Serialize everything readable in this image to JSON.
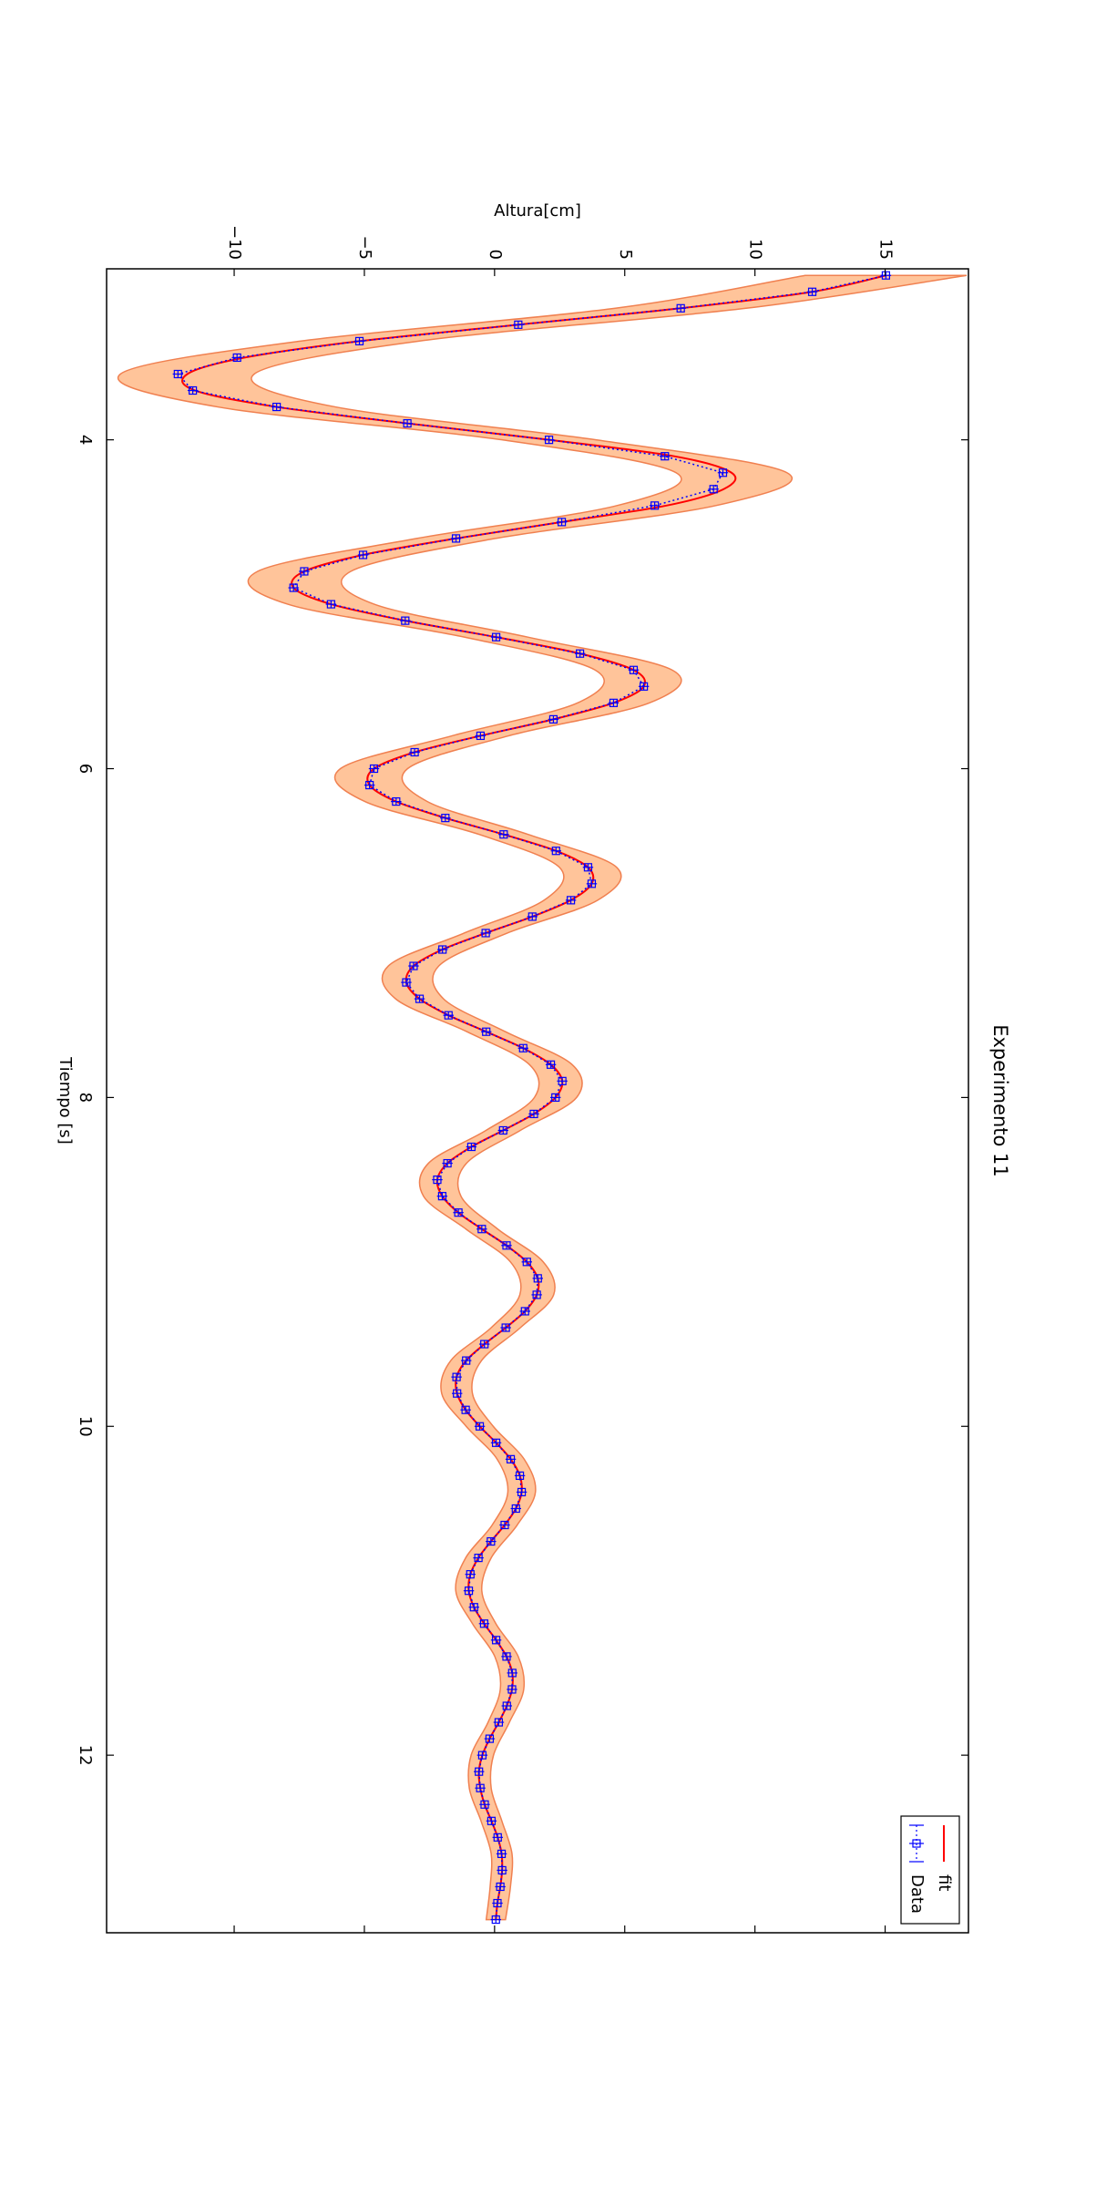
{
  "chart_data": {
    "type": "line",
    "title": "Experimento 11",
    "xlabel": "Tiempo [s]",
    "ylabel": "Altura[cm]",
    "xlim": [
      2.96,
      13.08
    ],
    "ylim": [
      -14.9,
      18.2
    ],
    "xticks": [
      4,
      6,
      8,
      10,
      12
    ],
    "yticks": [
      {
        "value": -10,
        "label": "−10"
      },
      {
        "value": -5,
        "label": "−5"
      },
      0,
      5,
      10,
      15
    ],
    "legend": "upper right",
    "x": [
      3.0,
      3.1,
      3.2,
      3.3,
      3.4,
      3.5,
      3.6,
      3.7,
      3.8,
      3.9,
      4.0,
      4.1,
      4.2,
      4.3,
      4.4,
      4.5,
      4.6,
      4.7,
      4.8,
      4.9,
      5.0,
      5.1,
      5.2,
      5.3,
      5.4,
      5.5,
      5.6,
      5.7,
      5.8,
      5.9,
      6.0,
      6.1,
      6.2,
      6.3,
      6.4,
      6.5,
      6.6,
      6.7,
      6.8,
      6.9,
      7.0,
      7.1,
      7.2,
      7.3,
      7.4,
      7.5,
      7.6,
      7.7,
      7.8,
      7.9,
      8.0,
      8.1,
      8.2,
      8.3,
      8.4,
      8.5,
      8.6,
      8.7,
      8.8,
      8.9,
      9.0,
      9.1,
      9.2,
      9.3,
      9.4,
      9.5,
      9.6,
      9.7,
      9.8,
      9.9,
      10.0,
      10.1,
      10.2,
      10.3,
      10.4,
      10.5,
      10.6,
      10.7,
      10.8,
      10.9,
      11.0,
      11.1,
      11.2,
      11.3,
      11.4,
      11.5,
      11.6,
      11.7,
      11.8,
      11.9,
      12.0,
      12.1,
      12.2,
      12.3,
      12.4,
      12.5,
      12.6,
      12.7,
      12.8,
      12.9,
      13.0
    ],
    "series": [
      {
        "name": "fit",
        "color": "#ff0000",
        "linestyle": "solid",
        "values": [
          15.03,
          12.2,
          7.15,
          0.91,
          -5.19,
          -9.6,
          -11.8,
          -11.5,
          -8.37,
          -3.35,
          2.09,
          6.9,
          9.1,
          8.8,
          6.6,
          2.58,
          -1.48,
          -5.05,
          -7.31,
          -7.72,
          -6.28,
          -3.43,
          0.06,
          3.28,
          5.34,
          5.73,
          4.57,
          2.26,
          -0.54,
          -3.07,
          -4.63,
          -4.8,
          -3.78,
          -1.89,
          0.35,
          2.36,
          3.59,
          3.73,
          2.93,
          1.45,
          -0.34,
          -2.0,
          -3.11,
          -3.39,
          -2.88,
          -1.77,
          -0.32,
          1.1,
          2.16,
          2.6,
          2.34,
          1.51,
          0.33,
          -0.89,
          -1.81,
          -2.2,
          -2.01,
          -1.39,
          -0.49,
          0.46,
          1.24,
          1.66,
          1.62,
          1.17,
          0.43,
          -0.39,
          -1.09,
          -1.46,
          -1.44,
          -1.11,
          -0.57,
          0.06,
          0.62,
          0.97,
          1.04,
          0.82,
          0.39,
          -0.14,
          -0.62,
          -0.93,
          -0.99,
          -0.79,
          -0.4,
          0.06,
          0.46,
          0.68,
          0.67,
          0.47,
          0.16,
          -0.19,
          -0.47,
          -0.6,
          -0.55,
          -0.38,
          -0.12,
          0.12,
          0.27,
          0.29,
          0.22,
          0.11,
          0.05
        ]
      },
      {
        "name": "Data",
        "color": "#0000ff",
        "linestyle": "dotted",
        "yerr": 0.2,
        "xerr": 0.02,
        "values": [
          15.03,
          12.2,
          7.15,
          0.91,
          -5.19,
          -9.89,
          -12.16,
          -11.59,
          -8.37,
          -3.35,
          2.09,
          6.54,
          8.77,
          8.41,
          6.15,
          2.58,
          -1.48,
          -5.05,
          -7.31,
          -7.72,
          -6.28,
          -3.43,
          0.06,
          3.28,
          5.34,
          5.73,
          4.57,
          2.26,
          -0.54,
          -3.07,
          -4.63,
          -4.8,
          -3.78,
          -1.89,
          0.35,
          2.36,
          3.59,
          3.73,
          2.93,
          1.45,
          -0.34,
          -2.0,
          -3.11,
          -3.39,
          -2.88,
          -1.77,
          -0.32,
          1.1,
          2.16,
          2.6,
          2.34,
          1.51,
          0.33,
          -0.89,
          -1.81,
          -2.2,
          -2.01,
          -1.39,
          -0.49,
          0.46,
          1.24,
          1.66,
          1.62,
          1.17,
          0.43,
          -0.39,
          -1.09,
          -1.46,
          -1.44,
          -1.11,
          -0.57,
          0.06,
          0.62,
          0.97,
          1.04,
          0.82,
          0.39,
          -0.14,
          -0.62,
          -0.93,
          -0.99,
          -0.79,
          -0.4,
          0.06,
          0.46,
          0.68,
          0.67,
          0.47,
          0.16,
          -0.19,
          -0.47,
          -0.6,
          -0.55,
          -0.38,
          -0.12,
          0.12,
          0.27,
          0.29,
          0.22,
          0.11,
          0.05
        ]
      }
    ],
    "band": {
      "fill": "#ffc49a",
      "edgecolor": "#f08050",
      "x": [
        3.0,
        3.2,
        3.4,
        3.6,
        3.8,
        4.0,
        4.2,
        4.4,
        4.6,
        4.8,
        5.0,
        5.2,
        5.4,
        5.6,
        5.8,
        6.0,
        6.2,
        6.4,
        6.6,
        6.8,
        7.0,
        7.2,
        7.4,
        7.6,
        7.8,
        8.0,
        8.2,
        8.4,
        8.6,
        8.8,
        9.0,
        9.2,
        9.4,
        9.6,
        9.8,
        10.0,
        10.2,
        10.4,
        10.6,
        10.8,
        11.0,
        11.2,
        11.4,
        11.6,
        11.8,
        12.0,
        12.2,
        12.4,
        12.6,
        12.8,
        13.0
      ],
      "lower": [
        11.93,
        4.64,
        -7.47,
        -14.37,
        -10.63,
        0.29,
        6.97,
        4.7,
        -2.99,
        -9.1,
        -7.94,
        -1.16,
        3.86,
        3.19,
        -1.63,
        -5.92,
        -4.98,
        -0.59,
        2.49,
        1.9,
        -1.17,
        -4.08,
        -3.8,
        -1.06,
        1.34,
        1.53,
        -0.33,
        -2.54,
        -2.73,
        -1.1,
        0.61,
        0.97,
        -0.13,
        -1.68,
        -2.03,
        -1.09,
        0.1,
        0.51,
        -0.09,
        -1.11,
        -1.49,
        -0.85,
        0.01,
        0.22,
        -0.25,
        -0.9,
        -0.97,
        -0.52,
        -0.13,
        -0.17,
        -0.32
      ],
      "upper": [
        18.13,
        9.66,
        -2.91,
        -9.23,
        -6.11,
        3.89,
        11.23,
        8.5,
        0.03,
        -5.52,
        -4.62,
        1.28,
        6.82,
        5.95,
        0.55,
        -3.34,
        -2.58,
        1.29,
        4.69,
        3.96,
        0.49,
        -2.14,
        -1.96,
        0.42,
        2.98,
        3.15,
        0.99,
        -1.08,
        -1.29,
        0.12,
        1.87,
        2.27,
        0.99,
        -0.5,
        -0.85,
        -0.05,
        1.14,
        1.57,
        0.87,
        -0.13,
        -0.49,
        0.05,
        0.91,
        1.12,
        0.57,
        -0.04,
        -0.13,
        0.28,
        0.67,
        0.61,
        0.42
      ]
    }
  }
}
